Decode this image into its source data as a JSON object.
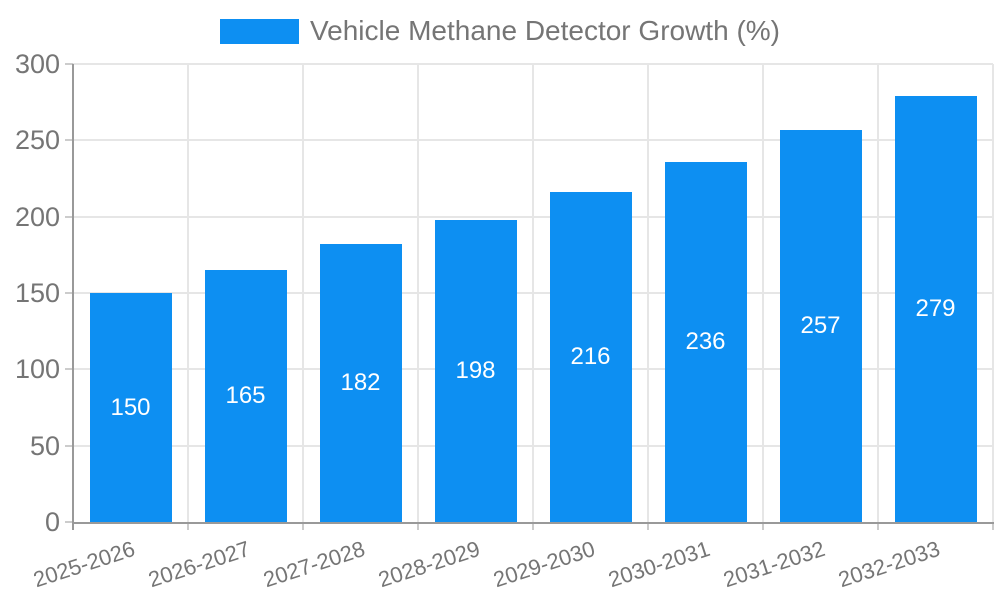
{
  "chart_data": {
    "type": "bar",
    "legend_label": "Vehicle Methane Detector Growth (%)",
    "legend_position": "top",
    "categories": [
      "2025-2026",
      "2026-2027",
      "2027-2028",
      "2028-2029",
      "2029-2030",
      "2030-2031",
      "2031-2032",
      "2032-2033"
    ],
    "values": [
      150,
      165,
      182,
      198,
      216,
      236,
      257,
      279
    ],
    "value_labels": [
      "150",
      "165",
      "182",
      "198",
      "216",
      "236",
      "257",
      "279"
    ],
    "yticks": [
      0,
      50,
      100,
      150,
      200,
      250,
      300
    ],
    "ylim": [
      0,
      300
    ],
    "xlabel": "",
    "ylabel": "",
    "grid": true,
    "x_label_rotation_deg": -18,
    "colors": {
      "bar": "#0D8FF2",
      "value_text": "#ffffff",
      "axis_text": "#757575",
      "grid_line": "#e6e6e6",
      "axis_line": "#999999",
      "tick_mark": "#cccccc",
      "background": "#ffffff"
    }
  }
}
